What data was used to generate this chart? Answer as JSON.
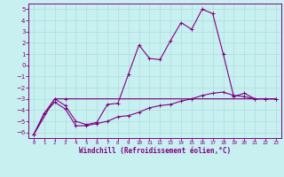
{
  "xlabel": "Windchill (Refroidissement éolien,°C)",
  "background_color": "#c8f0f0",
  "line_color": "#800080",
  "grid_color": "#aadddd",
  "xlim": [
    -0.5,
    23.5
  ],
  "ylim": [
    -6.5,
    5.5
  ],
  "xticks": [
    0,
    1,
    2,
    3,
    4,
    5,
    6,
    7,
    8,
    9,
    10,
    11,
    12,
    13,
    14,
    15,
    16,
    17,
    18,
    19,
    20,
    21,
    22,
    23
  ],
  "yticks": [
    -6,
    -5,
    -4,
    -3,
    -2,
    -1,
    0,
    1,
    2,
    3,
    4,
    5
  ],
  "series1_x": [
    0,
    1,
    2,
    3,
    4,
    5,
    6,
    7,
    8,
    9,
    10,
    11,
    12,
    13,
    14,
    15,
    16,
    17,
    18,
    19,
    20,
    21,
    22,
    23
  ],
  "series1_y": [
    -6.2,
    -4.3,
    -3.0,
    -3.6,
    -5.0,
    -5.3,
    -5.1,
    -3.5,
    -3.4,
    -0.8,
    1.8,
    0.6,
    0.5,
    2.2,
    3.8,
    3.2,
    5.0,
    4.6,
    1.0,
    -2.8,
    -2.5,
    -3.0,
    -3.0,
    -3.0
  ],
  "series2_x": [
    0,
    1,
    2,
    3,
    4,
    5,
    6,
    7,
    8,
    9,
    10,
    11,
    12,
    13,
    14,
    15,
    16,
    17,
    18,
    19,
    20,
    21,
    22,
    23
  ],
  "series2_y": [
    -6.2,
    -4.3,
    -3.3,
    -3.9,
    -5.4,
    -5.4,
    -5.2,
    -5.0,
    -4.6,
    -4.5,
    -4.2,
    -3.8,
    -3.6,
    -3.5,
    -3.2,
    -3.0,
    -2.7,
    -2.5,
    -2.4,
    -2.7,
    -2.8,
    -3.0,
    -3.0,
    -3.0
  ],
  "series3_x": [
    0,
    2,
    3,
    23
  ],
  "series3_y": [
    -6.2,
    -3.0,
    -3.0,
    -3.0
  ]
}
